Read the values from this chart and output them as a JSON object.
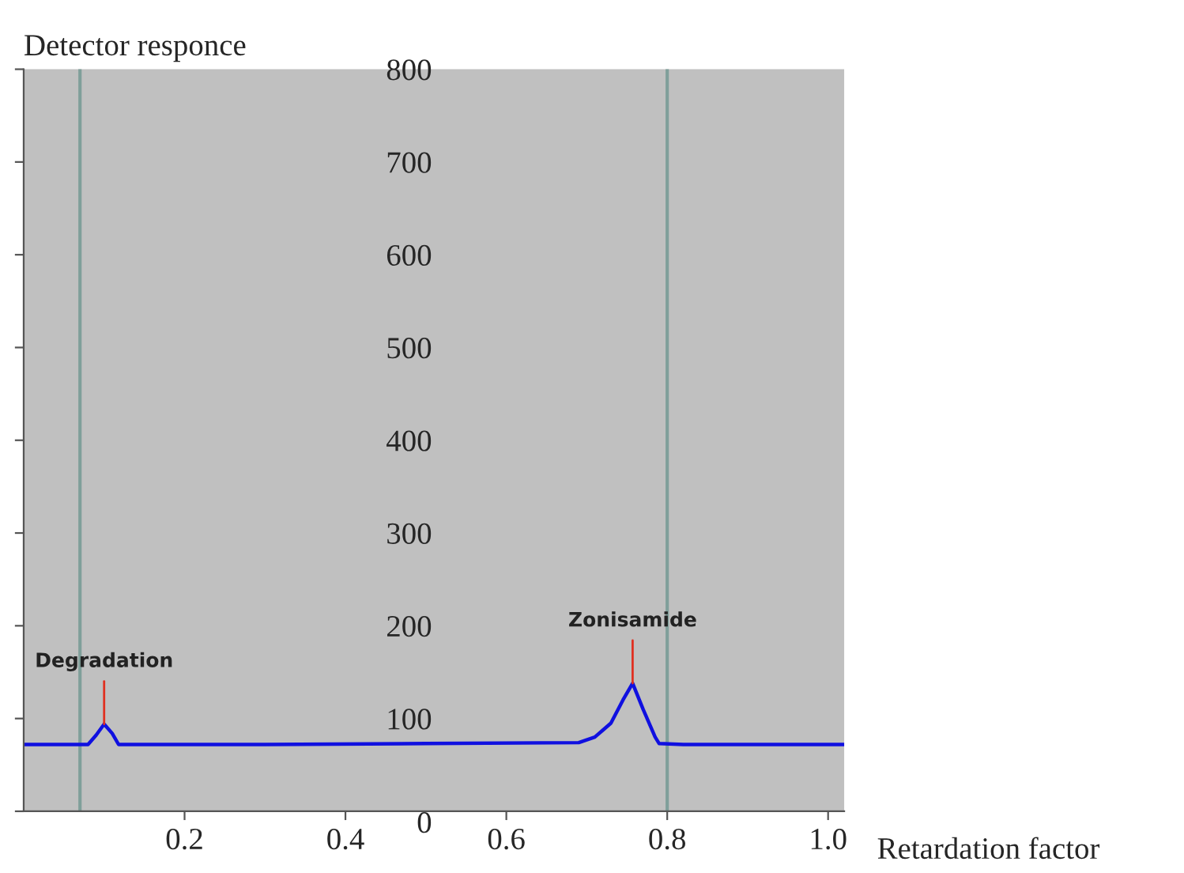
{
  "chart_data": {
    "type": "line",
    "xlabel": "Retardation factor",
    "ylabel": "Detector responce",
    "series": [
      {
        "color": "#1010e0",
        "x": [
          0,
          0.05,
          0.07,
          0.08,
          0.09,
          0.1,
          0.11,
          0.118,
          0.13,
          0.3,
          0.5,
          0.69,
          0.71,
          0.73,
          0.745,
          0.757,
          0.77,
          0.785,
          0.79,
          0.82,
          1.02
        ],
        "values": [
          72,
          72,
          72,
          72,
          82,
          94,
          84,
          72,
          72,
          72,
          73,
          74,
          80,
          95,
          120,
          138,
          110,
          80,
          73,
          72,
          72
        ]
      }
    ],
    "annotations": [
      {
        "text": "Degradation",
        "x": 0.1,
        "y": 94
      },
      {
        "text": "Zonisamide",
        "x": 0.757,
        "y": 138
      }
    ],
    "ref_lines": [
      {
        "axis": "x",
        "value": 0.07,
        "color": "#7f9f9a"
      },
      {
        "axis": "x",
        "value": 0.8,
        "color": "#7f9f9a"
      }
    ],
    "xlim": [
      0,
      1.02
    ],
    "xticks": [
      0.2,
      0.4,
      0.6,
      0.8,
      {
        "value": 1.0,
        "label": "1.0"
      }
    ],
    "ylim": [
      0,
      800
    ],
    "yticks": [
      0,
      100,
      200,
      300,
      400,
      500,
      600,
      700,
      800
    ],
    "grid": false,
    "legend": false
  }
}
